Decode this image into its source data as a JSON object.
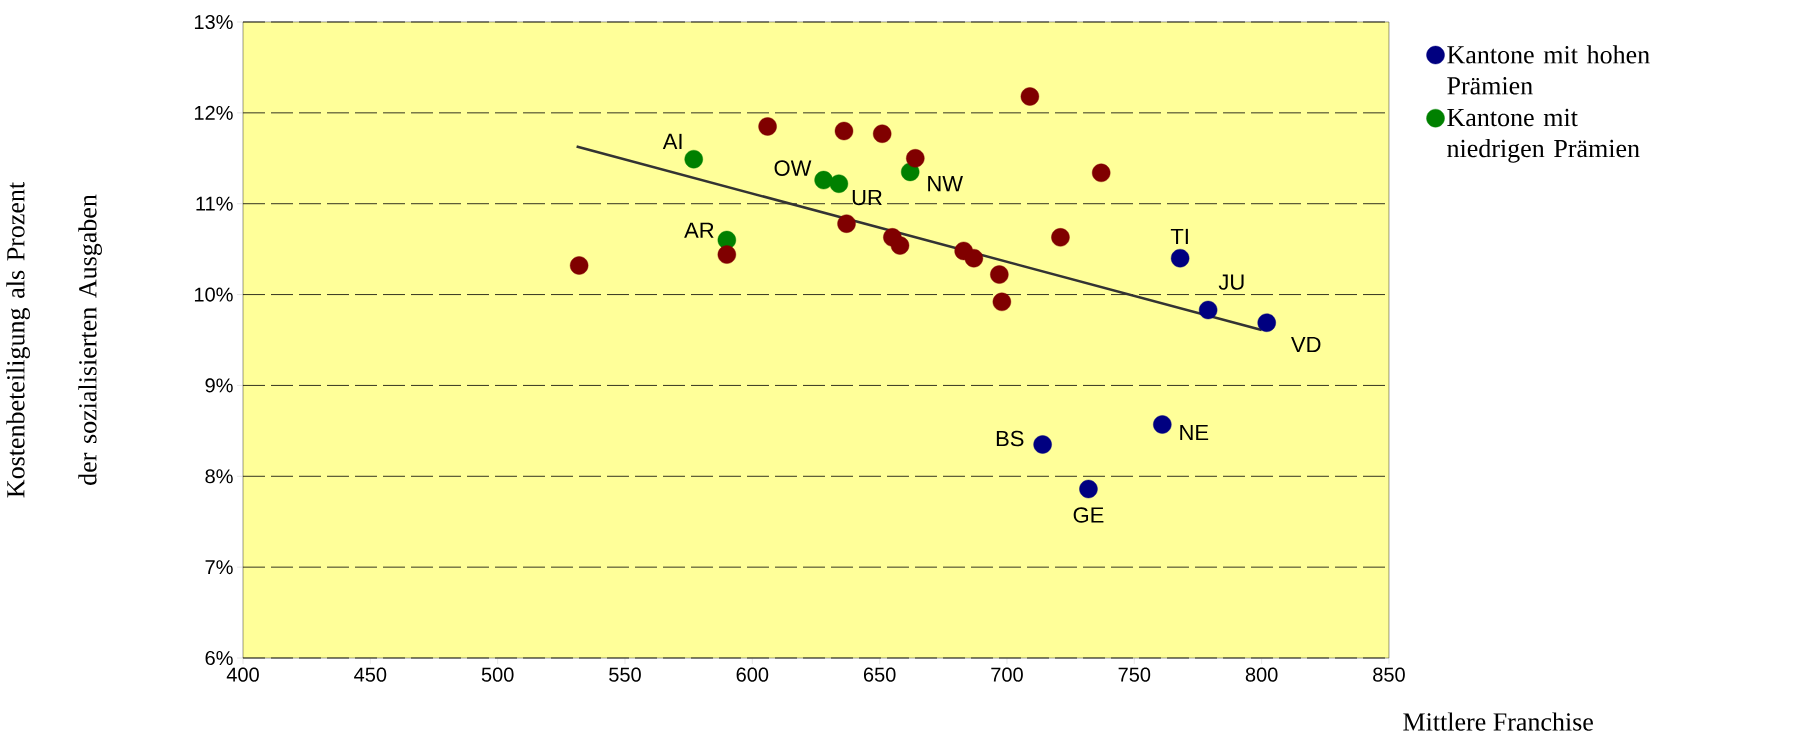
{
  "chart_data": {
    "type": "scatter",
    "xlabel": "Mittlere Franchise",
    "ylabel": "Kostenbeteiligung als Prozent der sozialisierten Ausgaben",
    "xlim": [
      400,
      850
    ],
    "xticks": [
      400,
      450,
      500,
      550,
      600,
      650,
      700,
      750,
      800,
      850
    ],
    "ylim": [
      6,
      13
    ],
    "yticks": [
      {
        "value": 6,
        "label": "6%"
      },
      {
        "value": 7,
        "label": "7%"
      },
      {
        "value": 8,
        "label": "8%"
      },
      {
        "value": 9,
        "label": "9%"
      },
      {
        "value": 10,
        "label": "10%"
      },
      {
        "value": 11,
        "label": "11%"
      },
      {
        "value": 12,
        "label": "12%"
      },
      {
        "value": 13,
        "label": "13%"
      }
    ],
    "grid": "y",
    "legend": "right",
    "marker": "circle",
    "series": [
      {
        "name": "Kantone mit hohen Prämien",
        "color": "#000080",
        "x": [
          768,
          779,
          802,
          714,
          761,
          732
        ],
        "values": [
          10.4,
          9.83,
          9.69,
          8.35,
          8.57,
          7.86
        ]
      },
      {
        "name": "Kantone mit niedrigen Prämien",
        "color": "#008000",
        "x": [
          577,
          590,
          628,
          634,
          662
        ],
        "values": [
          11.49,
          10.6,
          11.26,
          11.22,
          11.35
        ]
      },
      {
        "color": "#800000",
        "x": [
          532,
          590,
          606,
          636,
          651,
          664,
          637,
          655,
          658,
          683,
          687,
          697,
          698,
          709,
          721,
          737
        ],
        "values": [
          10.32,
          10.44,
          11.85,
          11.8,
          11.77,
          11.5,
          10.78,
          10.63,
          10.54,
          10.48,
          10.4,
          10.22,
          9.92,
          12.18,
          10.63,
          11.34
        ]
      },
      {
        "type": "line",
        "marker": "none",
        "color": "#333333",
        "x": [
          531,
          800
        ],
        "values": [
          11.63,
          9.61
        ]
      }
    ],
    "annotations": [
      {
        "text": "AI",
        "x": 577,
        "y": 11.49
      },
      {
        "text": "AR",
        "x": 590,
        "y": 10.6
      },
      {
        "text": "OW",
        "x": 628,
        "y": 11.26
      },
      {
        "text": "UR",
        "x": 634,
        "y": 11.22
      },
      {
        "text": "NW",
        "x": 662,
        "y": 11.35
      },
      {
        "text": "TI",
        "x": 768,
        "y": 10.4
      },
      {
        "text": "JU",
        "x": 779,
        "y": 9.83
      },
      {
        "text": "VD",
        "x": 802,
        "y": 9.69
      },
      {
        "text": "BS",
        "x": 714,
        "y": 8.35
      },
      {
        "text": "NE",
        "x": 761,
        "y": 8.57
      },
      {
        "text": "GE",
        "x": 732,
        "y": 7.86
      }
    ]
  }
}
